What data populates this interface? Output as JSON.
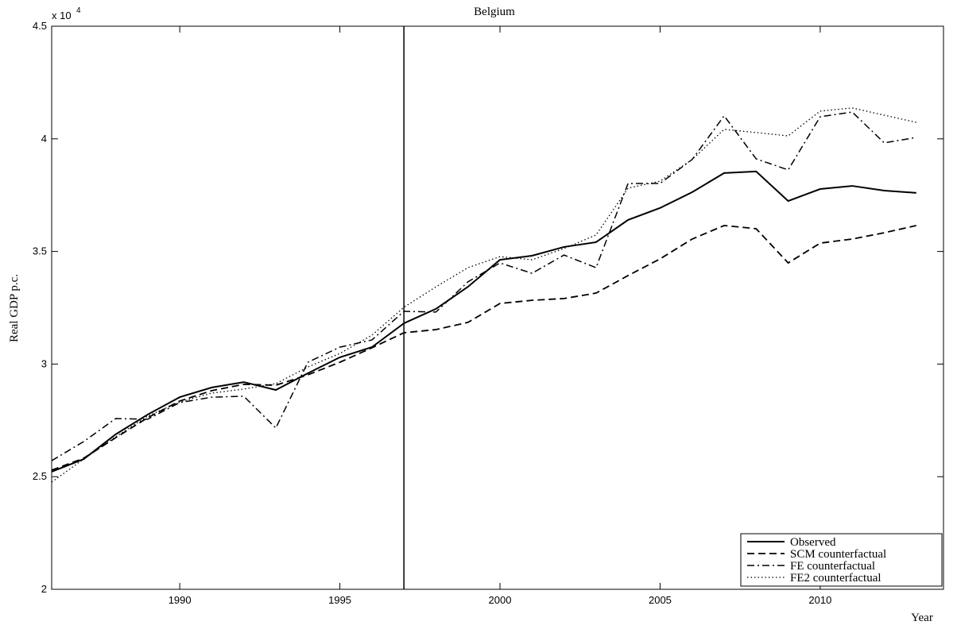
{
  "chart_data": {
    "type": "line",
    "title": "Belgium",
    "xlabel": "Year",
    "ylabel": "Real GDP p.c.",
    "y_multiplier": "x 10",
    "y_multiplier_exponent": "4",
    "x": [
      1986,
      1987,
      1988,
      1989,
      1990,
      1991,
      1992,
      1993,
      1994,
      1995,
      1996,
      1997,
      1998,
      1999,
      2000,
      2001,
      2002,
      2003,
      2004,
      2005,
      2006,
      2007,
      2008,
      2009,
      2010,
      2011,
      2012,
      2013
    ],
    "series": [
      {
        "name": "Observed",
        "color": "#000000",
        "style": "solid",
        "values": [
          2.522,
          2.578,
          2.688,
          2.776,
          2.853,
          2.896,
          2.92,
          2.885,
          2.959,
          3.03,
          3.075,
          3.181,
          3.245,
          3.343,
          3.463,
          3.481,
          3.52,
          3.541,
          3.64,
          3.693,
          3.763,
          3.848,
          3.855,
          3.724,
          3.777,
          3.791,
          3.77,
          3.76
        ]
      },
      {
        "name": "SCM counterfactual",
        "color": "#000000",
        "style": "dashed",
        "values": [
          2.529,
          2.582,
          2.673,
          2.762,
          2.836,
          2.882,
          2.91,
          2.906,
          2.952,
          3.008,
          3.072,
          3.139,
          3.153,
          3.185,
          3.269,
          3.283,
          3.291,
          3.315,
          3.393,
          3.467,
          3.555,
          3.615,
          3.601,
          3.449,
          3.537,
          3.555,
          3.583,
          3.615
        ]
      },
      {
        "name": "FE counterfactual",
        "color": "#000000",
        "style": "dashdot",
        "values": [
          2.571,
          2.656,
          2.758,
          2.755,
          2.829,
          2.853,
          2.857,
          2.716,
          3.008,
          3.075,
          3.107,
          3.234,
          3.231,
          3.365,
          3.449,
          3.403,
          3.484,
          3.428,
          3.802,
          3.802,
          3.908,
          4.102,
          3.911,
          3.862,
          4.098,
          4.119,
          3.982,
          4.006
        ]
      },
      {
        "name": "FE2 counterfactual",
        "color": "#000000",
        "style": "dotted",
        "values": [
          2.476,
          2.578,
          2.677,
          2.769,
          2.832,
          2.871,
          2.889,
          2.913,
          2.987,
          3.047,
          3.128,
          3.252,
          3.343,
          3.428,
          3.477,
          3.463,
          3.513,
          3.573,
          3.781,
          3.812,
          3.908,
          4.042,
          4.028,
          4.013,
          4.123,
          4.137,
          4.105,
          4.073
        ]
      }
    ],
    "vline": 1997,
    "xlim": [
      1986,
      2013.85
    ],
    "xticks": [
      1990,
      1995,
      2000,
      2005,
      2010
    ],
    "ylim": [
      2,
      4.5
    ],
    "yticks": [
      2,
      2.5,
      3,
      3.5,
      4,
      4.5
    ],
    "grid": false,
    "legend": "lower right"
  }
}
